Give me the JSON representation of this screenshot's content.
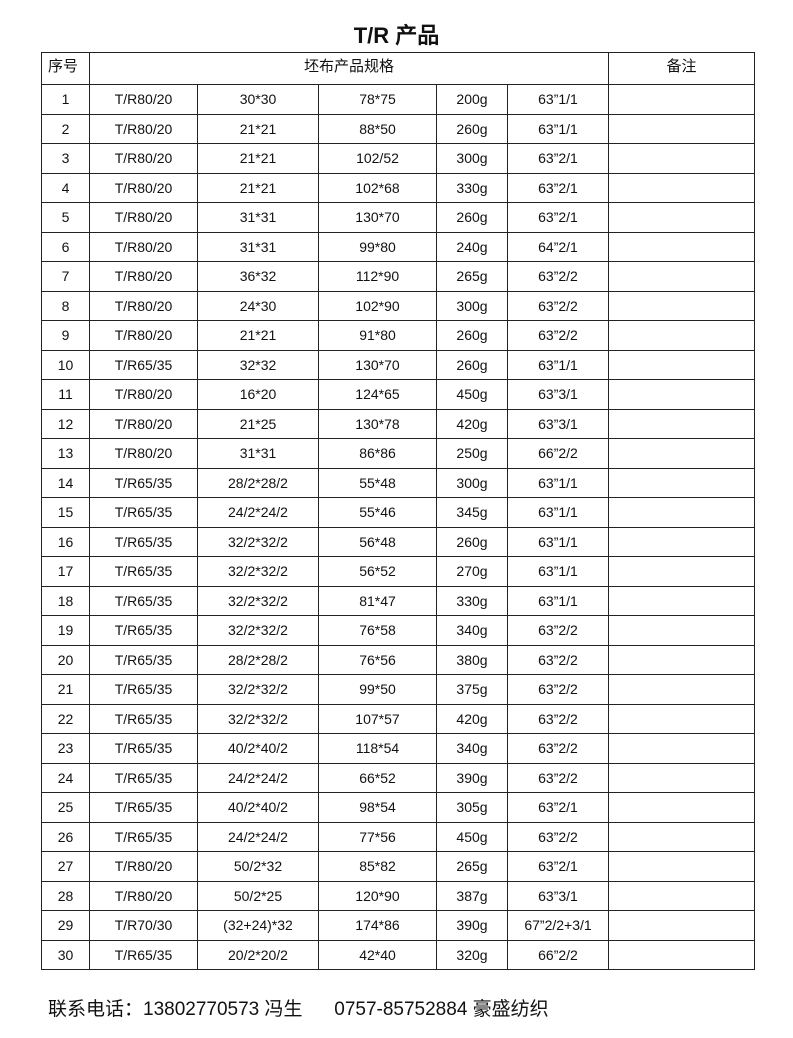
{
  "title": "T/R 产品",
  "headers": {
    "seq": "序号",
    "spec": "坯布产品规格",
    "remark": "备注"
  },
  "rows": [
    [
      "1",
      "T/R80/20",
      "30*30",
      "78*75",
      "200g",
      "63”1/1",
      ""
    ],
    [
      "2",
      "T/R80/20",
      "21*21",
      "88*50",
      "260g",
      "63”1/1",
      ""
    ],
    [
      "3",
      "T/R80/20",
      "21*21",
      "102/52",
      "300g",
      "63”2/1",
      ""
    ],
    [
      "4",
      "T/R80/20",
      "21*21",
      "102*68",
      "330g",
      "63”2/1",
      ""
    ],
    [
      "5",
      "T/R80/20",
      "31*31",
      "130*70",
      "260g",
      "63”2/1",
      ""
    ],
    [
      "6",
      "T/R80/20",
      "31*31",
      "99*80",
      "240g",
      "64”2/1",
      ""
    ],
    [
      "7",
      "T/R80/20",
      "36*32",
      "112*90",
      "265g",
      "63”2/2",
      ""
    ],
    [
      "8",
      "T/R80/20",
      "24*30",
      "102*90",
      "300g",
      "63”2/2",
      ""
    ],
    [
      "9",
      "T/R80/20",
      "21*21",
      "91*80",
      "260g",
      "63”2/2",
      ""
    ],
    [
      "10",
      "T/R65/35",
      "32*32",
      "130*70",
      "260g",
      "63”1/1",
      ""
    ],
    [
      "11",
      "T/R80/20",
      "16*20",
      "124*65",
      "450g",
      "63”3/1",
      ""
    ],
    [
      "12",
      "T/R80/20",
      "21*25",
      "130*78",
      "420g",
      "63”3/1",
      ""
    ],
    [
      "13",
      "T/R80/20",
      "31*31",
      "86*86",
      "250g",
      "66”2/2",
      ""
    ],
    [
      "14",
      "T/R65/35",
      "28/2*28/2",
      "55*48",
      "300g",
      "63”1/1",
      ""
    ],
    [
      "15",
      "T/R65/35",
      "24/2*24/2",
      "55*46",
      "345g",
      "63”1/1",
      ""
    ],
    [
      "16",
      "T/R65/35",
      "32/2*32/2",
      "56*48",
      "260g",
      "63”1/1",
      ""
    ],
    [
      "17",
      "T/R65/35",
      "32/2*32/2",
      "56*52",
      "270g",
      "63”1/1",
      ""
    ],
    [
      "18",
      "T/R65/35",
      "32/2*32/2",
      "81*47",
      "330g",
      "63”1/1",
      ""
    ],
    [
      "19",
      "T/R65/35",
      "32/2*32/2",
      "76*58",
      "340g",
      "63”2/2",
      ""
    ],
    [
      "20",
      "T/R65/35",
      "28/2*28/2",
      "76*56",
      "380g",
      "63”2/2",
      ""
    ],
    [
      "21",
      "T/R65/35",
      "32/2*32/2",
      "99*50",
      "375g",
      "63”2/2",
      ""
    ],
    [
      "22",
      "T/R65/35",
      "32/2*32/2",
      "107*57",
      "420g",
      "63”2/2",
      ""
    ],
    [
      "23",
      "T/R65/35",
      "40/2*40/2",
      "118*54",
      "340g",
      "63”2/2",
      ""
    ],
    [
      "24",
      "T/R65/35",
      "24/2*24/2",
      "66*52",
      "390g",
      "63”2/2",
      ""
    ],
    [
      "25",
      "T/R65/35",
      "40/2*40/2",
      "98*54",
      "305g",
      "63”2/1",
      ""
    ],
    [
      "26",
      "T/R65/35",
      "24/2*24/2",
      "77*56",
      "450g",
      "63”2/2",
      ""
    ],
    [
      "27",
      "T/R80/20",
      "50/2*32",
      "85*82",
      "265g",
      "63”2/1",
      ""
    ],
    [
      "28",
      "T/R80/20",
      "50/2*25",
      "120*90",
      "387g",
      "63”3/1",
      ""
    ],
    [
      "29",
      "T/R70/30",
      "(32+24)*32",
      "174*86",
      "390g",
      "67”2/2+3/1",
      ""
    ],
    [
      "30",
      "T/R65/35",
      "20/2*20/2",
      "42*40",
      "320g",
      "66”2/2",
      ""
    ]
  ],
  "footer": {
    "label": "联系电话：",
    "phone": "13802770573",
    "contact": "冯生",
    "landline": "0757-85752884",
    "company": "豪盛纺织"
  }
}
